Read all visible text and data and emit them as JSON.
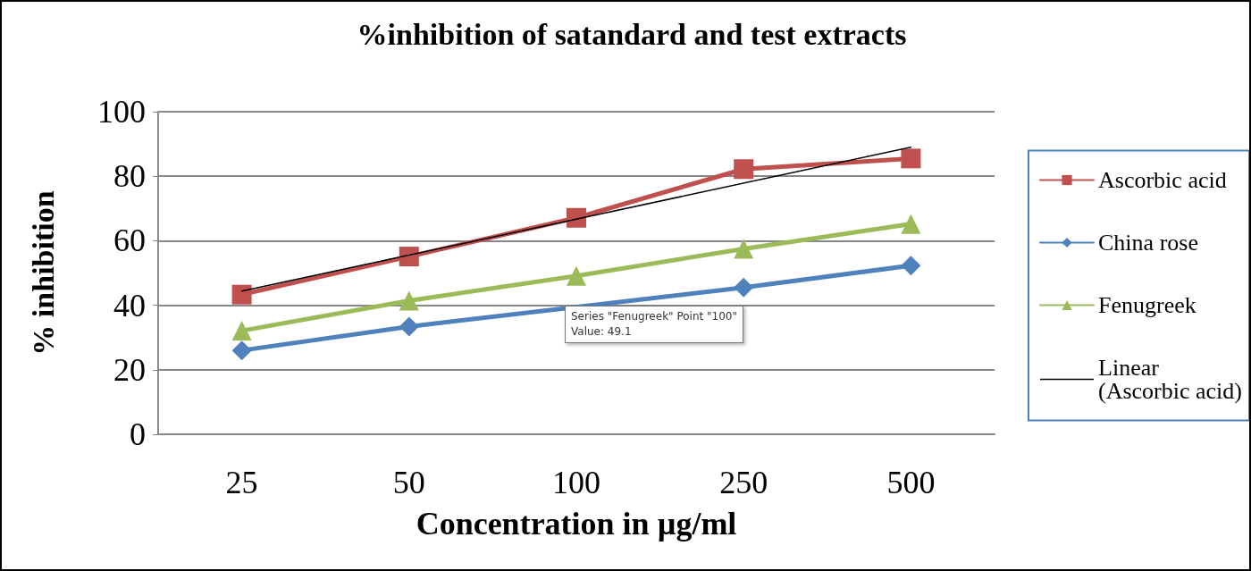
{
  "chart_data": {
    "type": "line",
    "title": "%inhibition of satandard and test extracts",
    "xlabel": "Concentration in µg/ml",
    "ylabel": "% inhibition",
    "categories": [
      "25",
      "50",
      "100",
      "250",
      "500"
    ],
    "series": [
      {
        "name": "Ascorbic acid",
        "color": "#c0504d",
        "marker": "square",
        "values": [
          43.3,
          55.1,
          67.1,
          82.2,
          85.5
        ]
      },
      {
        "name": "China rose",
        "color": "#4f81bd",
        "marker": "diamond",
        "values": [
          26.0,
          33.4,
          null,
          45.5,
          52.3
        ]
      },
      {
        "name": "Fenugreek",
        "color": "#9bbb59",
        "marker": "triangle",
        "values": [
          32.1,
          41.4,
          49.1,
          57.5,
          65.2
        ]
      },
      {
        "name": "Linear (Ascorbic acid)",
        "color": "#000000",
        "marker": "none",
        "x": [
          "25",
          "500"
        ],
        "values": [
          44.4,
          89.0
        ]
      }
    ],
    "annotations": [
      "Series \"Fenugreek\" Point \"100\"\nValue: 49.1"
    ],
    "ylim": [
      0,
      100
    ],
    "yticks": [
      0,
      20,
      40,
      60,
      80,
      100
    ],
    "grid": "y",
    "legend": "right"
  }
}
